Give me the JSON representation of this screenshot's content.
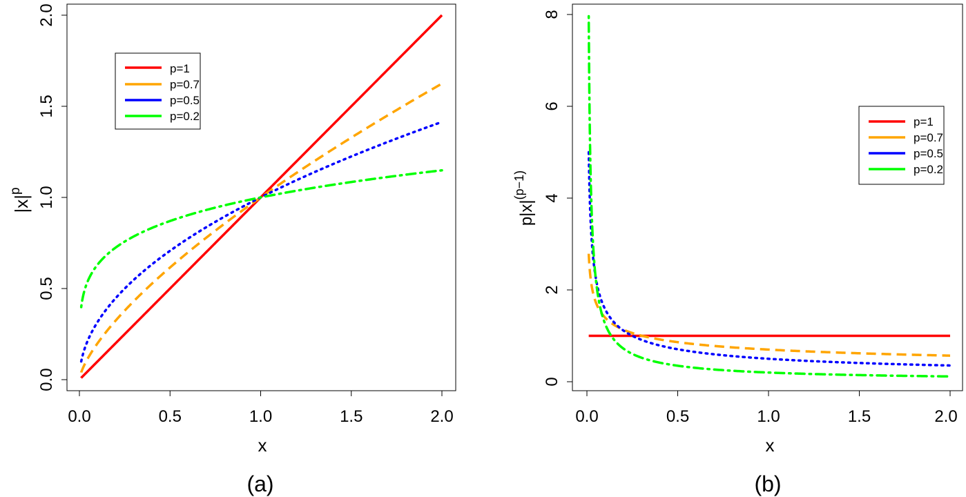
{
  "chart_data": [
    {
      "type": "line",
      "caption": "(a)",
      "xlabel": "x",
      "ylabel_base": "|x|",
      "ylabel_sup": "p",
      "xlim": [
        0,
        2
      ],
      "ylim": [
        0,
        2
      ],
      "x_ticks": [
        "0.0",
        "0.5",
        "1.0",
        "1.5",
        "2.0"
      ],
      "y_ticks": [
        "0.0",
        "0.5",
        "1.0",
        "1.5",
        "2.0"
      ],
      "legend_position": "top-left",
      "x_range": [
        0.01,
        2.0
      ],
      "series": [
        {
          "name": "p=1",
          "p": 1,
          "color": "#ff0000",
          "style": "solid"
        },
        {
          "name": "p=0.7",
          "p": 0.7,
          "color": "#ffa500",
          "style": "dashed"
        },
        {
          "name": "p=0.5",
          "p": 0.5,
          "color": "#0000ff",
          "style": "dotted"
        },
        {
          "name": "p=0.2",
          "p": 0.2,
          "color": "#00ff00",
          "style": "dotdash"
        }
      ]
    },
    {
      "type": "line",
      "caption": "(b)",
      "xlabel": "x",
      "ylabel_base": "p|x|",
      "ylabel_sup": "(p−1)",
      "xlim": [
        0,
        2
      ],
      "ylim": [
        0,
        8
      ],
      "x_ticks": [
        "0.0",
        "0.5",
        "1.0",
        "1.5",
        "2.0"
      ],
      "y_ticks": [
        "0",
        "2",
        "4",
        "6",
        "8"
      ],
      "legend_position": "right",
      "x_range": [
        0.01,
        2.0
      ],
      "series": [
        {
          "name": "p=1",
          "p": 1,
          "color": "#ff0000",
          "style": "solid"
        },
        {
          "name": "p=0.7",
          "p": 0.7,
          "color": "#ffa500",
          "style": "dashed"
        },
        {
          "name": "p=0.5",
          "p": 0.5,
          "color": "#0000ff",
          "style": "dotted"
        },
        {
          "name": "p=0.2",
          "p": 0.2,
          "color": "#00ff00",
          "style": "dotdash"
        }
      ]
    }
  ]
}
